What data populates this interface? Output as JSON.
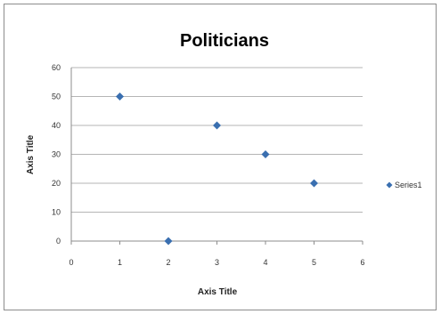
{
  "chart_data": {
    "type": "scatter",
    "title": "Politicians",
    "xlabel": "Axis Title",
    "ylabel": "Axis Title",
    "xlim": [
      0,
      6
    ],
    "ylim": [
      0,
      60
    ],
    "xticks": [
      0,
      1,
      2,
      3,
      4,
      5,
      6
    ],
    "yticks": [
      0,
      10,
      20,
      30,
      40,
      50,
      60
    ],
    "grid": "horizontal",
    "legend_position": "right",
    "series": [
      {
        "name": "Series1",
        "color": "#3a6fb0",
        "marker": "diamond",
        "points": [
          {
            "x": 1,
            "y": 50
          },
          {
            "x": 2,
            "y": 0
          },
          {
            "x": 3,
            "y": 40
          },
          {
            "x": 4,
            "y": 30
          },
          {
            "x": 5,
            "y": 20
          }
        ]
      }
    ]
  }
}
